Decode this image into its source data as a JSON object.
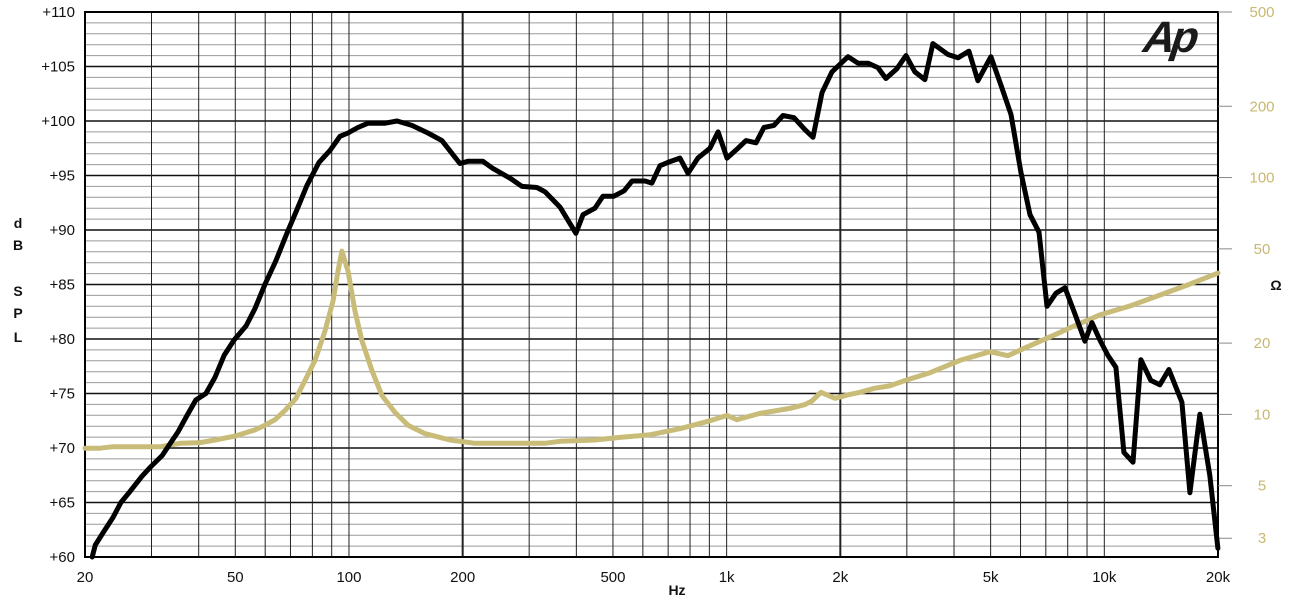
{
  "logo_text": "Ap",
  "chart_data": {
    "type": "line",
    "x_scale": "log",
    "xlim": [
      20,
      20000
    ],
    "xlabel": "Hz",
    "x_ticks": [
      {
        "v": 20,
        "label": "20"
      },
      {
        "v": 50,
        "label": "50"
      },
      {
        "v": 100,
        "label": "100"
      },
      {
        "v": 200,
        "label": "200"
      },
      {
        "v": 500,
        "label": "500"
      },
      {
        "v": 1000,
        "label": "1k"
      },
      {
        "v": 2000,
        "label": "2k"
      },
      {
        "v": 5000,
        "label": "5k"
      },
      {
        "v": 10000,
        "label": "10k"
      },
      {
        "v": 20000,
        "label": "20k"
      }
    ],
    "y_left": {
      "label_letters": [
        "d",
        "B",
        "S",
        "P",
        "L"
      ],
      "ylim": [
        60,
        110
      ],
      "ticks": [
        {
          "v": 110,
          "label": "+110"
        },
        {
          "v": 105,
          "label": "+105"
        },
        {
          "v": 100,
          "label": "+100"
        },
        {
          "v": 95,
          "label": "+95"
        },
        {
          "v": 90,
          "label": "+90"
        },
        {
          "v": 85,
          "label": "+85"
        },
        {
          "v": 80,
          "label": "+80"
        },
        {
          "v": 75,
          "label": "+75"
        },
        {
          "v": 70,
          "label": "+70"
        },
        {
          "v": 65,
          "label": "+65"
        },
        {
          "v": 60,
          "label": "+60"
        }
      ]
    },
    "y_right": {
      "label": "Ω",
      "scale": "log",
      "ylim": [
        2.5,
        500
      ],
      "ticks": [
        {
          "v": 500,
          "label": "500"
        },
        {
          "v": 200,
          "label": "200"
        },
        {
          "v": 100,
          "label": "100"
        },
        {
          "v": 50,
          "label": "50"
        },
        {
          "v": 20,
          "label": "20"
        },
        {
          "v": 10,
          "label": "10"
        },
        {
          "v": 5,
          "label": "5"
        },
        {
          "v": 3,
          "label": "3"
        }
      ]
    },
    "grid": true,
    "colors": {
      "spl": "#000000",
      "impedance": "#c8bc78",
      "right_axis_text": "#c8b870"
    },
    "series": [
      {
        "axis": "left",
        "x": [
          20.9,
          21.3,
          22.4,
          23.7,
          24.9,
          26.3,
          28.3,
          29.9,
          32.0,
          33.6,
          35.3,
          37.0,
          39.3,
          41.8,
          44.2,
          46.7,
          49.6,
          53.4,
          56.4,
          59.9,
          64.1,
          68.5,
          73.3,
          77.4,
          83.3,
          89.1,
          94.7,
          99.4,
          105.6,
          112.3,
          124.6,
          134,
          146.8,
          161.8,
          176.2,
          196.7,
          206.5,
          226.3,
          239.1,
          268.5,
          287.1,
          314.6,
          330.4,
          362,
          399,
          416.5,
          447.9,
          470.3,
          503,
          535,
          562,
          608,
          634,
          666,
          699,
          752,
          790,
          839,
          903,
          949,
          1002,
          1071,
          1125,
          1196,
          1255,
          1334,
          1410,
          1508,
          1612,
          1693,
          1788,
          1900,
          2096,
          2227,
          2367,
          2515,
          2641,
          2824,
          2984,
          3152,
          3350,
          3517,
          3855,
          4097,
          4380,
          4628,
          5009,
          5324,
          5660,
          6014,
          6356,
          6714,
          7050,
          7447,
          7867,
          8360,
          8886,
          9273,
          9736,
          10220,
          10731,
          11270,
          11910,
          12500,
          13280,
          14030,
          14830,
          16050,
          16850,
          17910,
          19030,
          19990
        ],
        "y": [
          60.0,
          61.1,
          62.3,
          63.6,
          65.0,
          66.0,
          67.4,
          68.3,
          69.3,
          70.4,
          71.5,
          72.8,
          74.4,
          75.0,
          76.5,
          78.5,
          79.9,
          81.2,
          82.8,
          85.0,
          87.2,
          89.7,
          92.1,
          94.1,
          96.2,
          97.3,
          98.6,
          98.9,
          99.4,
          99.8,
          99.8,
          100.0,
          99.6,
          98.9,
          98.2,
          96.1,
          96.3,
          96.3,
          95.7,
          94.7,
          94.0,
          93.9,
          93.5,
          92.1,
          89.7,
          91.4,
          92.0,
          93.1,
          93.1,
          93.6,
          94.5,
          94.5,
          94.3,
          95.9,
          96.2,
          96.6,
          95.2,
          96.6,
          97.5,
          99.0,
          96.6,
          97.5,
          98.2,
          98.0,
          99.4,
          99.6,
          100.5,
          100.3,
          99.2,
          98.5,
          102.6,
          104.5,
          105.9,
          105.3,
          105.3,
          104.9,
          103.9,
          104.8,
          106.0,
          104.5,
          103.8,
          107.1,
          106.1,
          105.8,
          106.4,
          103.7,
          105.9,
          103.3,
          100.6,
          95.3,
          91.4,
          89.8,
          83.0,
          84.2,
          84.7,
          82.3,
          79.8,
          81.5,
          79.9,
          78.5,
          77.4,
          69.6,
          68.7,
          78.1,
          76.2,
          75.8,
          77.2,
          74.2,
          65.9,
          73.1,
          67.5,
          60.8
        ]
      },
      {
        "axis": "right",
        "x": [
          20,
          21.9,
          23.6,
          31.6,
          35.7,
          40.3,
          44.2,
          49.9,
          56.4,
          59.9,
          63.7,
          67.7,
          72.4,
          76.5,
          81.3,
          86.4,
          90.7,
          93.5,
          95.8,
          99.4,
          103.7,
          108.2,
          115.1,
          122.3,
          132.4,
          143.3,
          158.9,
          185,
          215.6,
          251.1,
          330.4,
          362,
          448,
          522,
          626,
          752,
          903,
          1002,
          1064,
          1225,
          1471,
          1612,
          1683,
          1777,
          1937,
          2096,
          2254,
          2469,
          2706,
          2966,
          3454,
          4146,
          4979,
          5556,
          6356,
          7403,
          8360,
          9736,
          11690,
          14030,
          16850,
          20000
        ],
        "y": [
          7.2,
          7.2,
          7.3,
          7.3,
          7.55,
          7.6,
          7.8,
          8.1,
          8.6,
          9.0,
          9.5,
          10.4,
          11.7,
          13.9,
          16.9,
          22.5,
          30.1,
          40.3,
          48.9,
          40.3,
          27.4,
          20.5,
          15.3,
          12.0,
          10.2,
          9.0,
          8.3,
          7.8,
          7.55,
          7.55,
          7.55,
          7.7,
          7.8,
          8.0,
          8.2,
          8.7,
          9.4,
          9.9,
          9.5,
          10.1,
          10.6,
          11.0,
          11.4,
          12.4,
          11.7,
          12.1,
          12.4,
          12.9,
          13.2,
          13.9,
          15.0,
          16.9,
          18.4,
          17.7,
          19.5,
          21.7,
          23.7,
          26.3,
          28.7,
          31.9,
          35.5,
          39.5
        ]
      }
    ]
  }
}
